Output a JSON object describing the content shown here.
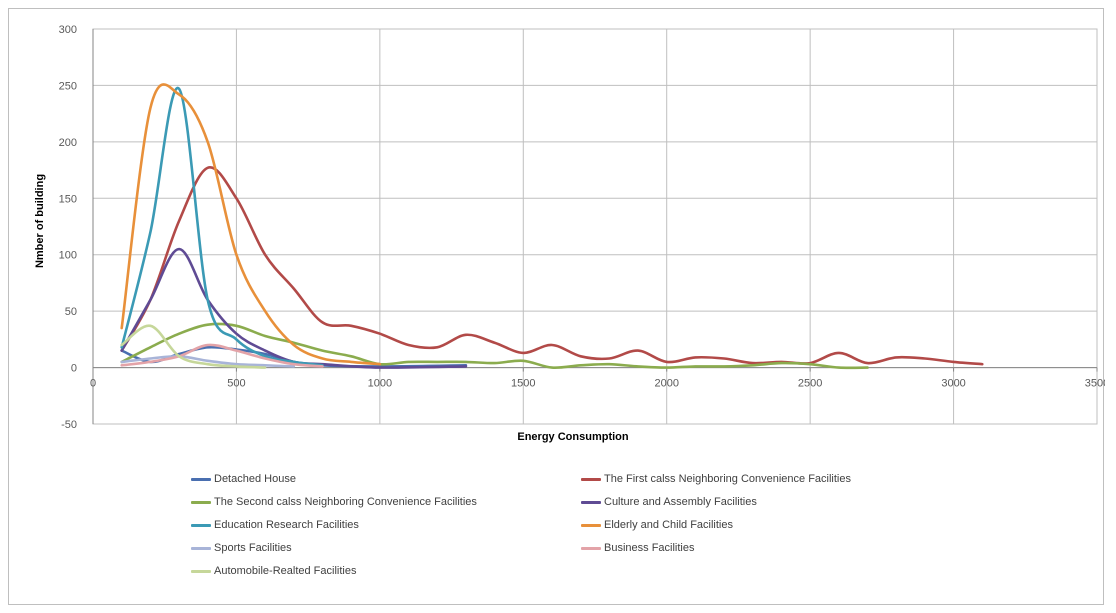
{
  "chart_data": {
    "type": "line",
    "title": "",
    "xlabel": "Energy Consumption",
    "ylabel": "Nmber of building",
    "xlim": [
      0,
      3500
    ],
    "ylim": [
      -50,
      300
    ],
    "xticks": [
      0,
      500,
      1000,
      1500,
      2000,
      2500,
      3000,
      3500
    ],
    "yticks": [
      -50,
      0,
      50,
      100,
      150,
      200,
      250,
      300
    ],
    "grid": true,
    "legend_position": "bottom",
    "series": [
      {
        "name": "Detached House",
        "color": "#4a6fb0",
        "points": [
          [
            100,
            15
          ],
          [
            200,
            5
          ],
          [
            300,
            12
          ],
          [
            400,
            18
          ],
          [
            500,
            16
          ],
          [
            600,
            12
          ],
          [
            700,
            5
          ],
          [
            800,
            2
          ],
          [
            1000,
            1
          ],
          [
            1300,
            2
          ]
        ]
      },
      {
        "name": "The First calss Neighboring Convenience Facilities",
        "color": "#b24a48",
        "points": [
          [
            100,
            15
          ],
          [
            200,
            60
          ],
          [
            300,
            130
          ],
          [
            400,
            177
          ],
          [
            500,
            150
          ],
          [
            600,
            100
          ],
          [
            700,
            70
          ],
          [
            800,
            40
          ],
          [
            900,
            37
          ],
          [
            1000,
            30
          ],
          [
            1100,
            20
          ],
          [
            1200,
            18
          ],
          [
            1300,
            29
          ],
          [
            1400,
            22
          ],
          [
            1500,
            13
          ],
          [
            1600,
            20
          ],
          [
            1700,
            10
          ],
          [
            1800,
            8
          ],
          [
            1900,
            15
          ],
          [
            2000,
            5
          ],
          [
            2100,
            9
          ],
          [
            2200,
            8
          ],
          [
            2300,
            4
          ],
          [
            2400,
            5
          ],
          [
            2500,
            4
          ],
          [
            2600,
            13
          ],
          [
            2700,
            4
          ],
          [
            2800,
            9
          ],
          [
            2900,
            8
          ],
          [
            3000,
            5
          ],
          [
            3100,
            3
          ]
        ]
      },
      {
        "name": "The Second calss Neighboring Convenience Facilities",
        "color": "#8bac4e",
        "points": [
          [
            100,
            5
          ],
          [
            200,
            18
          ],
          [
            300,
            30
          ],
          [
            400,
            38
          ],
          [
            500,
            37
          ],
          [
            600,
            28
          ],
          [
            700,
            22
          ],
          [
            800,
            15
          ],
          [
            900,
            10
          ],
          [
            1000,
            3
          ],
          [
            1100,
            5
          ],
          [
            1200,
            5
          ],
          [
            1300,
            5
          ],
          [
            1400,
            4
          ],
          [
            1500,
            6
          ],
          [
            1600,
            0
          ],
          [
            1700,
            2
          ],
          [
            1800,
            3
          ],
          [
            1900,
            1
          ],
          [
            2000,
            0
          ],
          [
            2100,
            1
          ],
          [
            2200,
            1
          ],
          [
            2300,
            2
          ],
          [
            2400,
            4
          ],
          [
            2500,
            3
          ],
          [
            2600,
            0
          ],
          [
            2700,
            0
          ]
        ]
      },
      {
        "name": "Culture and Assembly Facilities",
        "color": "#5f4b94",
        "points": [
          [
            100,
            15
          ],
          [
            200,
            60
          ],
          [
            300,
            105
          ],
          [
            400,
            60
          ],
          [
            500,
            30
          ],
          [
            600,
            15
          ],
          [
            700,
            5
          ],
          [
            800,
            3
          ],
          [
            1000,
            0
          ],
          [
            1300,
            1
          ]
        ]
      },
      {
        "name": "Education Research Facilities",
        "color": "#3b9ab5",
        "points": [
          [
            100,
            18
          ],
          [
            200,
            120
          ],
          [
            300,
            247
          ],
          [
            400,
            60
          ],
          [
            500,
            25
          ],
          [
            600,
            10
          ],
          [
            700,
            5
          ],
          [
            800,
            2
          ]
        ]
      },
      {
        "name": "Elderly and Child Facilities",
        "color": "#e8903a",
        "points": [
          [
            100,
            35
          ],
          [
            200,
            230
          ],
          [
            300,
            242
          ],
          [
            400,
            200
          ],
          [
            500,
            100
          ],
          [
            600,
            50
          ],
          [
            700,
            20
          ],
          [
            800,
            8
          ],
          [
            900,
            5
          ],
          [
            1000,
            3
          ]
        ]
      },
      {
        "name": "Sports Facilities",
        "color": "#a8b4d8",
        "points": [
          [
            100,
            5
          ],
          [
            200,
            8
          ],
          [
            300,
            10
          ],
          [
            400,
            6
          ],
          [
            500,
            3
          ],
          [
            600,
            2
          ],
          [
            700,
            1
          ]
        ]
      },
      {
        "name": "Business Facilities",
        "color": "#e3a3a8",
        "points": [
          [
            100,
            2
          ],
          [
            200,
            5
          ],
          [
            300,
            10
          ],
          [
            400,
            20
          ],
          [
            500,
            15
          ],
          [
            600,
            8
          ],
          [
            700,
            3
          ],
          [
            800,
            1
          ]
        ]
      },
      {
        "name": "Automobile-Realted Facilities",
        "color": "#c6d79a",
        "points": [
          [
            100,
            20
          ],
          [
            200,
            37
          ],
          [
            300,
            10
          ],
          [
            400,
            3
          ],
          [
            500,
            1
          ],
          [
            600,
            0
          ]
        ]
      }
    ]
  }
}
